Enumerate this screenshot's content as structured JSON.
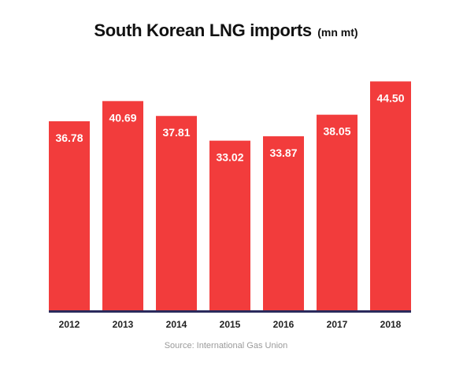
{
  "chart_data": {
    "type": "bar",
    "title": "South Korean LNG imports",
    "title_unit": "(mn mt)",
    "categories": [
      "2012",
      "2013",
      "2014",
      "2015",
      "2016",
      "2017",
      "2018"
    ],
    "values": [
      36.78,
      40.69,
      37.81,
      33.02,
      33.87,
      38.05,
      44.5
    ],
    "value_labels": [
      "36.78",
      "40.69",
      "37.81",
      "33.02",
      "33.87",
      "38.05",
      "44.50"
    ],
    "ylim": [
      0,
      49.9
    ],
    "grid": false,
    "source": "Source: International Gas Union",
    "colors": {
      "bar": "#f23c3c",
      "axis": "#2a2a5c",
      "label": "#ffffff"
    }
  }
}
